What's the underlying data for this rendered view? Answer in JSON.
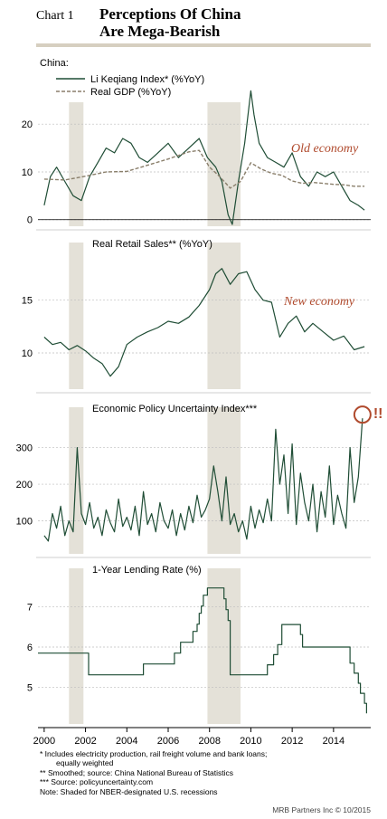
{
  "header": {
    "chart_label": "Chart 1",
    "title_line1": "Perceptions Of China",
    "title_line2": "Are Mega-Bearish"
  },
  "footnotes": {
    "note1": "*   Includes electricity production, rail freight volume and bank loans;",
    "note1b": "equally weighted",
    "note2": "**  Smoothed; source: China National Bureau of Statistics",
    "note3": "*** Source: policyuncertainty.com",
    "note4": "Note: Shaded for NBER-designated U.S. recessions"
  },
  "credit": "MRB Partners Inc © 10/2015",
  "colors": {
    "line": "#1f4d35",
    "gdp": "#8a7f6b",
    "shade": "#e4e1d8",
    "annotation": "#b04a2d",
    "rule": "#d6cfc0"
  },
  "chart_data": [
    {
      "type": "line",
      "header_label": "China:",
      "xlim": [
        1999.7,
        2015.8
      ],
      "ylim": [
        -1,
        28
      ],
      "yticks": [
        0,
        10,
        20
      ],
      "recessions": [
        [
          2001.2,
          2001.9
        ],
        [
          2007.9,
          2009.5
        ]
      ],
      "annotation": "Old economy",
      "zero_line": true,
      "series": [
        {
          "name": "Li Keqiang Index* (%YoY)",
          "style": "solid",
          "x": [
            2000.0,
            2000.3,
            2000.6,
            2001.0,
            2001.4,
            2001.8,
            2002.2,
            2002.6,
            2003.0,
            2003.4,
            2003.8,
            2004.2,
            2004.6,
            2005.0,
            2005.5,
            2006.0,
            2006.5,
            2007.0,
            2007.5,
            2007.9,
            2008.3,
            2008.6,
            2008.9,
            2009.1,
            2009.4,
            2009.7,
            2010.0,
            2010.15,
            2010.4,
            2010.8,
            2011.2,
            2011.6,
            2012.0,
            2012.4,
            2012.8,
            2013.2,
            2013.6,
            2014.0,
            2014.4,
            2014.8,
            2015.2,
            2015.5
          ],
          "y": [
            3,
            9,
            11,
            8,
            5,
            4,
            9,
            12,
            15,
            14,
            17,
            16,
            13,
            12,
            14,
            16,
            13,
            15,
            17,
            13,
            11,
            8,
            1,
            -1,
            8,
            16,
            27,
            22,
            16,
            13,
            12,
            11,
            14,
            9,
            7,
            10,
            9,
            10,
            7,
            4,
            3,
            2
          ]
        },
        {
          "name": "Real GDP (%YoY)",
          "style": "dashed",
          "x": [
            2000.0,
            2001.0,
            2002.0,
            2003.0,
            2004.0,
            2005.0,
            2006.0,
            2007.0,
            2007.5,
            2008.0,
            2008.5,
            2009.0,
            2009.5,
            2010.0,
            2010.5,
            2011.0,
            2011.5,
            2012.0,
            2012.5,
            2013.0,
            2013.5,
            2014.0,
            2014.5,
            2015.0,
            2015.5
          ],
          "y": [
            8.5,
            8.3,
            9.1,
            10,
            10.1,
            11.4,
            12.7,
            14.2,
            14.5,
            11,
            9,
            6.6,
            8,
            11.9,
            10.6,
            9.7,
            9.3,
            8.1,
            7.6,
            7.8,
            7.6,
            7.4,
            7.3,
            7,
            7
          ]
        }
      ]
    },
    {
      "type": "line",
      "title": "Real Retail Sales** (%YoY)",
      "xlim": [
        1999.7,
        2015.8
      ],
      "ylim": [
        7,
        19
      ],
      "yticks": [
        10,
        15
      ],
      "recessions": [
        [
          2001.2,
          2001.9
        ],
        [
          2007.9,
          2009.5
        ]
      ],
      "annotation": "New economy",
      "series": [
        {
          "name": "",
          "x": [
            2000.0,
            2000.4,
            2000.8,
            2001.2,
            2001.6,
            2002.0,
            2002.4,
            2002.8,
            2003.2,
            2003.6,
            2004.0,
            2004.5,
            2005.0,
            2005.5,
            2006.0,
            2006.5,
            2007.0,
            2007.5,
            2008.0,
            2008.3,
            2008.6,
            2009.0,
            2009.4,
            2009.8,
            2010.2,
            2010.6,
            2011.0,
            2011.4,
            2011.8,
            2012.2,
            2012.6,
            2013.0,
            2013.5,
            2014.0,
            2014.5,
            2015.0,
            2015.5
          ],
          "y": [
            11.5,
            10.8,
            11,
            10.3,
            10.7,
            10.2,
            9.5,
            9,
            7.8,
            8.7,
            10.8,
            11.5,
            12,
            12.4,
            13,
            12.8,
            13.4,
            14.5,
            16,
            17.5,
            18,
            16.5,
            17.5,
            17.7,
            16,
            15,
            14.8,
            11.5,
            12.8,
            13.5,
            12,
            12.8,
            12,
            11.2,
            11.6,
            10.3,
            10.6
          ]
        }
      ]
    },
    {
      "type": "line",
      "title": "Economic Policy Uncertainty Index***",
      "xlim": [
        1999.7,
        2015.8
      ],
      "ylim": [
        20,
        410
      ],
      "yticks": [
        100,
        200,
        300
      ],
      "recessions": [
        [
          2001.2,
          2001.9
        ],
        [
          2007.9,
          2009.5
        ]
      ],
      "annotation": "!!",
      "series": [
        {
          "name": "",
          "x": [
            2000.0,
            2000.2,
            2000.4,
            2000.6,
            2000.8,
            2001.0,
            2001.2,
            2001.4,
            2001.6,
            2001.8,
            2002.0,
            2002.2,
            2002.4,
            2002.6,
            2002.8,
            2003.0,
            2003.2,
            2003.4,
            2003.6,
            2003.8,
            2004.0,
            2004.2,
            2004.4,
            2004.6,
            2004.8,
            2005.0,
            2005.2,
            2005.4,
            2005.6,
            2005.8,
            2006.0,
            2006.2,
            2006.4,
            2006.6,
            2006.8,
            2007.0,
            2007.2,
            2007.4,
            2007.6,
            2007.8,
            2008.0,
            2008.2,
            2008.4,
            2008.6,
            2008.8,
            2009.0,
            2009.2,
            2009.4,
            2009.6,
            2009.8,
            2010.0,
            2010.2,
            2010.4,
            2010.6,
            2010.8,
            2011.0,
            2011.2,
            2011.4,
            2011.6,
            2011.8,
            2012.0,
            2012.2,
            2012.4,
            2012.6,
            2012.8,
            2013.0,
            2013.2,
            2013.4,
            2013.6,
            2013.8,
            2014.0,
            2014.2,
            2014.4,
            2014.6,
            2014.8,
            2015.0,
            2015.2,
            2015.4
          ],
          "y": [
            60,
            45,
            120,
            80,
            140,
            60,
            100,
            70,
            300,
            120,
            90,
            150,
            80,
            110,
            60,
            130,
            95,
            70,
            160,
            85,
            110,
            75,
            140,
            60,
            180,
            90,
            120,
            70,
            150,
            100,
            80,
            130,
            60,
            120,
            75,
            140,
            95,
            170,
            110,
            130,
            160,
            250,
            180,
            100,
            220,
            90,
            120,
            70,
            100,
            50,
            140,
            80,
            130,
            95,
            160,
            100,
            350,
            200,
            280,
            120,
            310,
            90,
            230,
            150,
            100,
            200,
            70,
            180,
            110,
            250,
            90,
            170,
            120,
            80,
            300,
            150,
            220,
            380
          ]
        }
      ]
    },
    {
      "type": "line",
      "title": "1-Year Lending Rate (%)",
      "xlim": [
        1999.7,
        2015.8
      ],
      "ylim": [
        4.2,
        7.8
      ],
      "yticks": [
        5,
        6,
        7
      ],
      "recessions": [
        [
          2001.2,
          2001.9
        ],
        [
          2007.9,
          2009.5
        ]
      ],
      "xticks": [
        "2000",
        "2002",
        "2004",
        "2006",
        "2008",
        "2010",
        "2012",
        "2014"
      ],
      "xtick_values": [
        2000,
        2002,
        2004,
        2006,
        2008,
        2010,
        2012,
        2014
      ],
      "series": [
        {
          "name": "",
          "step": true,
          "x": [
            1999.7,
            2002.15,
            2004.8,
            2006.3,
            2006.6,
            2007.2,
            2007.4,
            2007.5,
            2007.6,
            2007.7,
            2007.9,
            2008.7,
            2008.8,
            2008.9,
            2009.0,
            2010.8,
            2011.1,
            2011.3,
            2011.5,
            2012.4,
            2012.5,
            2014.8,
            2015.0,
            2015.2,
            2015.3,
            2015.5,
            2015.6
          ],
          "y": [
            5.85,
            5.31,
            5.58,
            5.85,
            6.12,
            6.39,
            6.57,
            6.84,
            7.02,
            7.29,
            7.47,
            7.2,
            6.93,
            6.66,
            5.31,
            5.56,
            5.81,
            6.06,
            6.56,
            6.31,
            6.0,
            5.6,
            5.35,
            5.1,
            4.85,
            4.6,
            4.35
          ]
        }
      ]
    }
  ]
}
